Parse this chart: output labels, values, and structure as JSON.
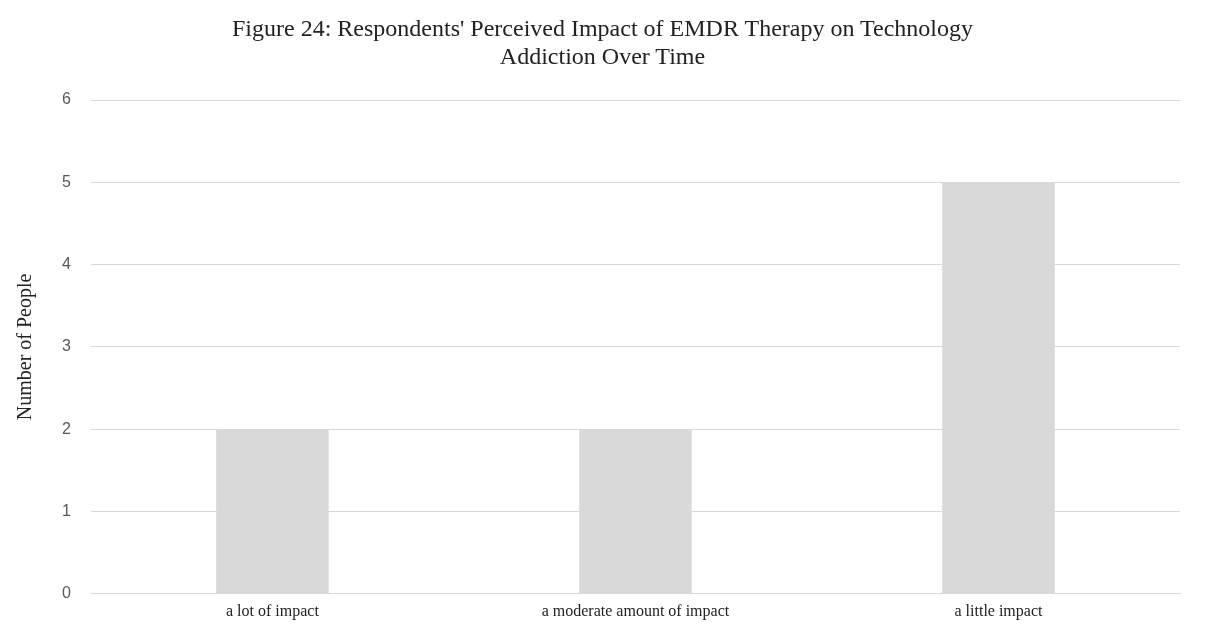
{
  "chart_data": {
    "type": "bar",
    "title": "Figure 24: Respondents' Perceived Impact of EMDR Therapy on Technology Addiction Over Time",
    "ylabel": "Number of People",
    "categories": [
      "a lot of impact",
      "a moderate amount of impact",
      "a little impact"
    ],
    "values": [
      2,
      2,
      5
    ],
    "color": "#d9d9d9",
    "ylim": [
      0,
      6
    ],
    "yticks": [
      0,
      1,
      2,
      3,
      4,
      5,
      6
    ],
    "grid": "y"
  }
}
